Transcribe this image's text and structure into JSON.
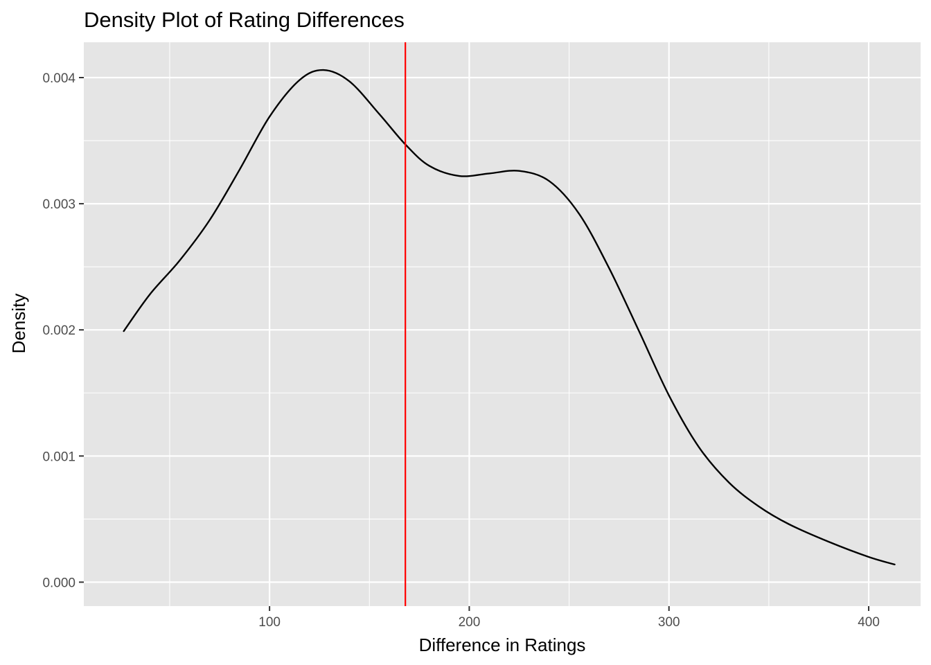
{
  "chart_data": {
    "type": "line",
    "title": "Density Plot of Rating Differences",
    "xlabel": "Difference in Ratings",
    "ylabel": "Density",
    "xlim": [
      7,
      426
    ],
    "ylim": [
      -0.00019,
      0.00428
    ],
    "x_ticks": [
      100,
      200,
      300,
      400
    ],
    "x_tick_labels": [
      "100",
      "200",
      "300",
      "400"
    ],
    "y_ticks": [
      0,
      0.001,
      0.002,
      0.003,
      0.004
    ],
    "y_tick_labels": [
      "0.000",
      "0.001",
      "0.002",
      "0.003",
      "0.004"
    ],
    "grid": true,
    "legend": "none",
    "colors": {
      "panel_background": "#e5e5e5",
      "density_line": "#000000",
      "reference_line": "#ff0000"
    },
    "series": [
      {
        "x": [
          27,
          40,
          55,
          70,
          85,
          100,
          115,
          127,
          140,
          155,
          168,
          180,
          195,
          210,
          225,
          240,
          255,
          270,
          285,
          300,
          315,
          330,
          345,
          360,
          380,
          400,
          413
        ],
        "y": [
          0.00199,
          0.00228,
          0.00255,
          0.00287,
          0.00327,
          0.00369,
          0.00398,
          0.00406,
          0.00397,
          0.00371,
          0.00347,
          0.0033,
          0.00322,
          0.00324,
          0.00326,
          0.00318,
          0.00292,
          0.00249,
          0.00199,
          0.00148,
          0.00107,
          0.00079,
          0.0006,
          0.00046,
          0.00032,
          0.0002,
          0.00014
        ]
      }
    ],
    "reference_lines": [
      {
        "orientation": "vertical",
        "x": 168
      }
    ]
  }
}
